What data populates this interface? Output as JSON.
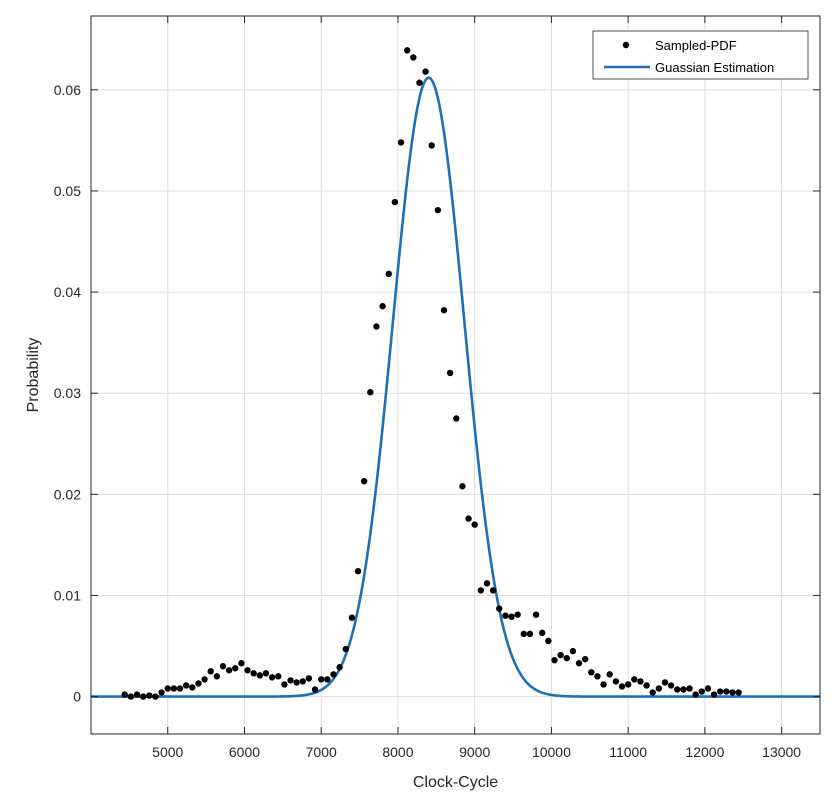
{
  "chart_data": {
    "type": "scatter",
    "xlabel": "Clock-Cycle",
    "ylabel": "Probability",
    "xlim": [
      4000,
      13500
    ],
    "ylim": [
      -0.0037,
      0.0673
    ],
    "xticks": [
      5000,
      6000,
      7000,
      8000,
      9000,
      10000,
      11000,
      12000,
      13000
    ],
    "yticks": [
      0,
      0.01,
      0.02,
      0.03,
      0.04,
      0.05,
      0.06
    ],
    "ytick_labels": [
      "0",
      "0.01",
      "0.02",
      "0.03",
      "0.04",
      "0.05",
      "0.06"
    ],
    "grid": true,
    "legend_position": "top-right",
    "series": [
      {
        "name": "Sampled-PDF",
        "kind": "scatter",
        "color": "#000000",
        "points": [
          [
            4440,
            0.0002
          ],
          [
            4520,
            0.0
          ],
          [
            4600,
            0.0002
          ],
          [
            4680,
            0.0
          ],
          [
            4760,
            0.0001
          ],
          [
            4840,
            0.0
          ],
          [
            4920,
            0.0004
          ],
          [
            5000,
            0.0008
          ],
          [
            5080,
            0.0008
          ],
          [
            5160,
            0.0008
          ],
          [
            5240,
            0.0011
          ],
          [
            5320,
            0.0009
          ],
          [
            5400,
            0.0013
          ],
          [
            5480,
            0.0017
          ],
          [
            5560,
            0.0025
          ],
          [
            5640,
            0.002
          ],
          [
            5720,
            0.003
          ],
          [
            5800,
            0.0026
          ],
          [
            5880,
            0.0028
          ],
          [
            5960,
            0.0033
          ],
          [
            6040,
            0.0026
          ],
          [
            6120,
            0.0023
          ],
          [
            6200,
            0.0021
          ],
          [
            6280,
            0.0023
          ],
          [
            6360,
            0.0019
          ],
          [
            6440,
            0.002
          ],
          [
            6520,
            0.0012
          ],
          [
            6600,
            0.0016
          ],
          [
            6680,
            0.0014
          ],
          [
            6760,
            0.0015
          ],
          [
            6840,
            0.0018
          ],
          [
            6920,
            0.0007
          ],
          [
            7000,
            0.0017
          ],
          [
            7080,
            0.0017
          ],
          [
            7160,
            0.0022
          ],
          [
            7240,
            0.0029
          ],
          [
            7320,
            0.0047
          ],
          [
            7400,
            0.0078
          ],
          [
            7480,
            0.0124
          ],
          [
            7560,
            0.0213
          ],
          [
            7640,
            0.0301
          ],
          [
            7720,
            0.0366
          ],
          [
            7800,
            0.0386
          ],
          [
            7880,
            0.0418
          ],
          [
            7960,
            0.0489
          ],
          [
            8040,
            0.0548
          ],
          [
            8120,
            0.0639
          ],
          [
            8200,
            0.0632
          ],
          [
            8280,
            0.0607
          ],
          [
            8360,
            0.0618
          ],
          [
            8440,
            0.0545
          ],
          [
            8520,
            0.0481
          ],
          [
            8600,
            0.0382
          ],
          [
            8680,
            0.032
          ],
          [
            8760,
            0.0275
          ],
          [
            8840,
            0.0208
          ],
          [
            8920,
            0.0176
          ],
          [
            9000,
            0.017
          ],
          [
            9080,
            0.0105
          ],
          [
            9160,
            0.0112
          ],
          [
            9240,
            0.0105
          ],
          [
            9320,
            0.0087
          ],
          [
            9400,
            0.008
          ],
          [
            9480,
            0.0079
          ],
          [
            9560,
            0.0081
          ],
          [
            9640,
            0.0062
          ],
          [
            9720,
            0.0062
          ],
          [
            9800,
            0.0081
          ],
          [
            9880,
            0.0063
          ],
          [
            9960,
            0.0055
          ],
          [
            10040,
            0.0036
          ],
          [
            10120,
            0.0041
          ],
          [
            10200,
            0.0038
          ],
          [
            10280,
            0.0045
          ],
          [
            10360,
            0.0033
          ],
          [
            10440,
            0.0037
          ],
          [
            10520,
            0.0024
          ],
          [
            10600,
            0.002
          ],
          [
            10680,
            0.0012
          ],
          [
            10760,
            0.0022
          ],
          [
            10840,
            0.0015
          ],
          [
            10920,
            0.001
          ],
          [
            11000,
            0.0012
          ],
          [
            11080,
            0.0017
          ],
          [
            11160,
            0.0015
          ],
          [
            11240,
            0.0011
          ],
          [
            11320,
            0.0004
          ],
          [
            11400,
            0.0008
          ],
          [
            11480,
            0.0014
          ],
          [
            11560,
            0.0011
          ],
          [
            11640,
            0.0007
          ],
          [
            11720,
            0.0007
          ],
          [
            11800,
            0.0008
          ],
          [
            11880,
            0.0002
          ],
          [
            11960,
            0.0005
          ],
          [
            12040,
            0.0008
          ],
          [
            12120,
            0.0002
          ],
          [
            12200,
            0.0005
          ],
          [
            12280,
            0.0005
          ],
          [
            12360,
            0.0004
          ],
          [
            12440,
            0.0004
          ]
        ]
      },
      {
        "name": "Guassian Estimation",
        "kind": "line",
        "color": "#1f6fb4",
        "gaussian": {
          "mean": 8400,
          "sigma": 465,
          "peak": 0.0612
        }
      }
    ]
  }
}
